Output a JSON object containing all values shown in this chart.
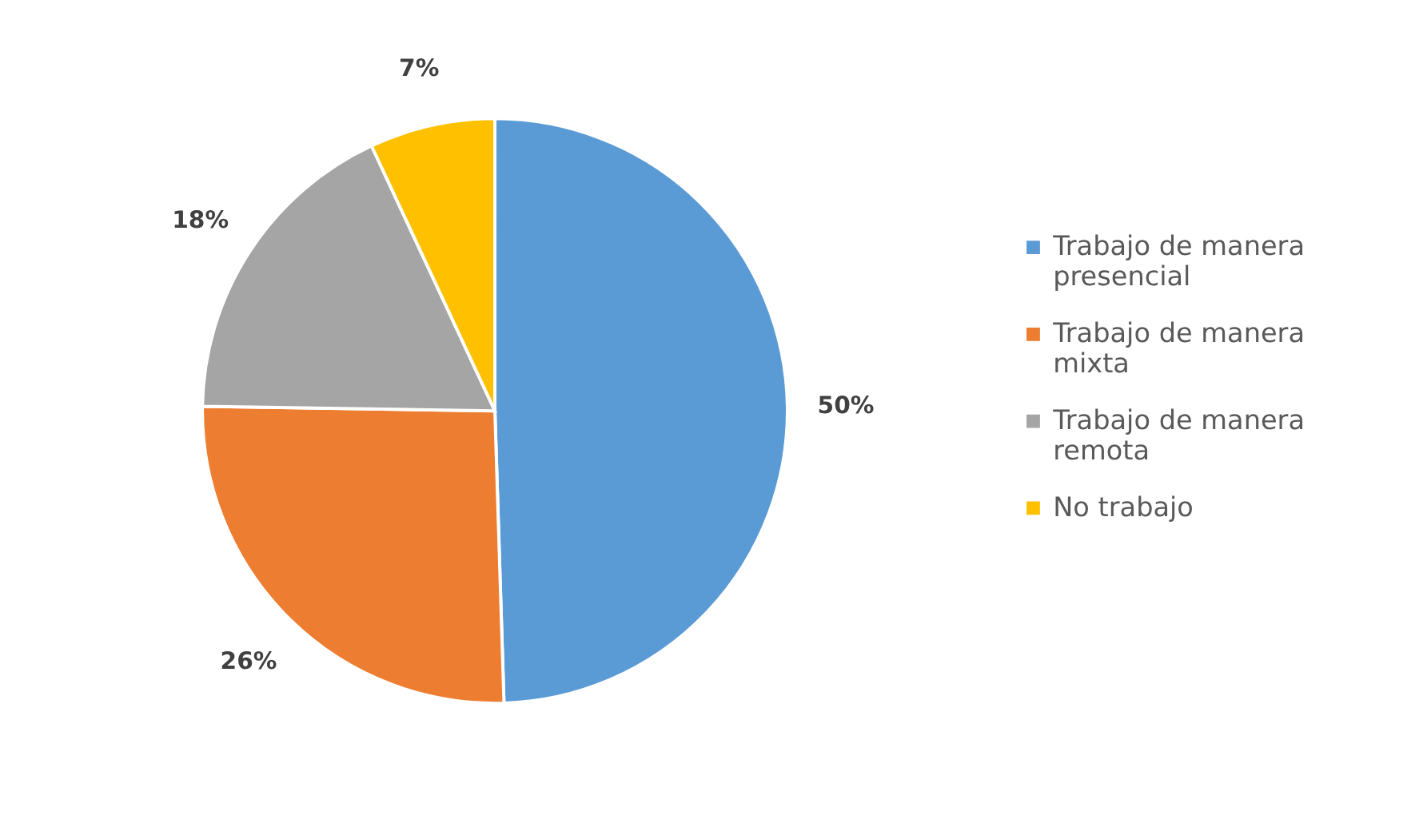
{
  "chart_data": {
    "type": "pie",
    "categories": [
      "Trabajo de manera presencial",
      "Trabajo de manera mixta",
      "Trabajo de manera remota",
      "No trabajo"
    ],
    "values": [
      50,
      26,
      18,
      7
    ],
    "colors": [
      "#5b9bd5",
      "#ed7d31",
      "#a5a5a5",
      "#ffc000"
    ],
    "value_labels": [
      "50%",
      "26%",
      "18%",
      "7%"
    ],
    "legend": "right"
  }
}
